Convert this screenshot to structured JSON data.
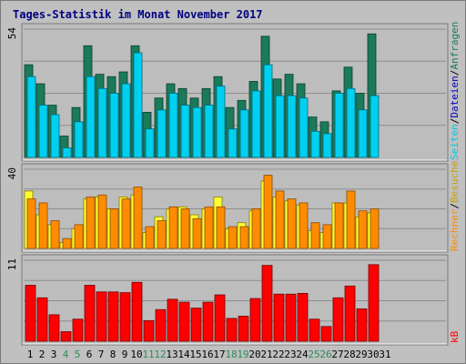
{
  "title": "Tages-Statistik im Monat November 2017",
  "colors": {
    "title": "#000080",
    "background": "#c0c0c0",
    "panel": "#bdbdbd",
    "grid": "#8e8e8e",
    "hits": "#1a7a5a",
    "files": "#00d0f0",
    "pages": "#00c8e8",
    "visits": "#ffff30",
    "sites": "#ff8c00",
    "kbytes": "#ff0000",
    "weekend_label": "#2e8b57",
    "weekday_label": "#000000",
    "sep_slash": "#000000"
  },
  "chart_data": [
    {
      "type": "bar",
      "panel": "top",
      "ymax_label": "54",
      "ylim": [
        0,
        54
      ],
      "categories": [
        "1",
        "2",
        "3",
        "4",
        "5",
        "6",
        "7",
        "8",
        "9",
        "10",
        "11",
        "12",
        "13",
        "14",
        "15",
        "16",
        "17",
        "18",
        "19",
        "20",
        "21",
        "22",
        "23",
        "24",
        "25",
        "26",
        "27",
        "28",
        "29",
        "30",
        "31"
      ],
      "series": [
        {
          "name": "Anfragen",
          "values": [
            39,
            31,
            22,
            9,
            21,
            47,
            35,
            34,
            36,
            47,
            19,
            25,
            31,
            29,
            25,
            29,
            34,
            21,
            24,
            32,
            51,
            33,
            35,
            31,
            17,
            15,
            28,
            38,
            27,
            52,
            0
          ]
        },
        {
          "name": "Dateien",
          "values": [
            34,
            22,
            18,
            4,
            15,
            34,
            29,
            27,
            31,
            44,
            12,
            20,
            27,
            22,
            21,
            22,
            30,
            12,
            20,
            28,
            39,
            26,
            26,
            25,
            11,
            10,
            27,
            29,
            20,
            26,
            0
          ]
        },
        {
          "name": "Seiten",
          "values": [
            0,
            0,
            0,
            0,
            0,
            0,
            0,
            0,
            0,
            0,
            0,
            0,
            0,
            0,
            0,
            0,
            0,
            0,
            0,
            0,
            0,
            0,
            0,
            0,
            0,
            0,
            0,
            0,
            0,
            0,
            0
          ]
        }
      ]
    },
    {
      "type": "bar",
      "panel": "middle",
      "ymax_label": "40",
      "ylim": [
        0,
        40
      ],
      "series": [
        {
          "name": "Besuche",
          "values": [
            29,
            17,
            12,
            3,
            10,
            25,
            26,
            20,
            26,
            27,
            8,
            16,
            20,
            21,
            17,
            20,
            26,
            10,
            13,
            19,
            34,
            26,
            24,
            22,
            9,
            8,
            23,
            23,
            16,
            18,
            0
          ]
        },
        {
          "name": "Rechner",
          "values": [
            25,
            23,
            14,
            5,
            12,
            26,
            27,
            20,
            25,
            31,
            11,
            14,
            21,
            20,
            15,
            21,
            21,
            11,
            11,
            20,
            37,
            29,
            25,
            23,
            13,
            12,
            23,
            29,
            19,
            20,
            0
          ]
        }
      ]
    },
    {
      "type": "bar",
      "panel": "bottom",
      "ymax_label": "11",
      "ylim": [
        0,
        11
      ],
      "series": [
        {
          "name": "kB",
          "values": [
            7.6,
            5.9,
            3.6,
            1.3,
            3.0,
            7.6,
            6.7,
            6.7,
            6.6,
            8.0,
            2.8,
            4.3,
            5.7,
            5.3,
            4.5,
            5.3,
            6.3,
            3.1,
            3.4,
            5.8,
            10.3,
            6.4,
            6.4,
            6.5,
            3.0,
            2.0,
            5.9,
            7.5,
            4.4,
            10.4,
            0
          ]
        }
      ]
    }
  ],
  "legend": {
    "top": {
      "hits": "Anfragen",
      "files": "Dateien",
      "pages": "Seiten"
    },
    "middle": {
      "visits": "Besuche",
      "sites": "Rechner"
    },
    "bottom": {
      "kbytes": "kB"
    },
    "separator": "/"
  },
  "weekend_days": [
    4,
    5,
    11,
    12,
    18,
    19,
    25,
    26
  ]
}
